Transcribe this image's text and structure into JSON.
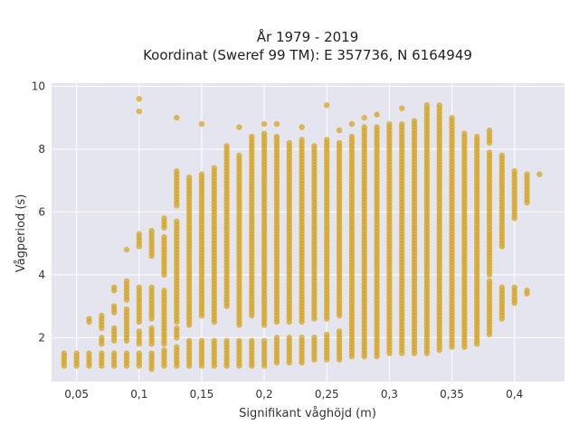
{
  "chart_data": {
    "type": "scatter",
    "title_lines": [
      "År 1979 - 2019",
      "Koordinat (Sweref 99 TM): E 357736, N 6164949"
    ],
    "xlabel": "Signifikant våghöjd (m)",
    "ylabel": "Vågperiod (s)",
    "xlim": [
      0.03,
      0.44
    ],
    "ylim": [
      0.6,
      10.1
    ],
    "x_ticks": [
      0.05,
      0.1,
      0.15,
      0.2,
      0.25,
      0.3,
      0.35,
      0.4
    ],
    "x_tick_labels": [
      "0,05",
      "0,1",
      "0,15",
      "0,2",
      "0,25",
      "0,3",
      "0,35",
      "0,4"
    ],
    "y_ticks": [
      2,
      4,
      6,
      8,
      10
    ],
    "y_tick_labels": [
      "2",
      "4",
      "6",
      "8",
      "10"
    ],
    "grid": true,
    "marker_color": "#d4a421",
    "background_color": "#e5e5ef",
    "columns": [
      {
        "x": 0.04,
        "segments": [
          [
            1.1,
            1.5
          ]
        ]
      },
      {
        "x": 0.05,
        "segments": [
          [
            1.1,
            1.5
          ]
        ]
      },
      {
        "x": 0.06,
        "segments": [
          [
            1.1,
            1.5
          ],
          [
            2.5,
            2.6
          ]
        ]
      },
      {
        "x": 0.07,
        "segments": [
          [
            1.1,
            1.5
          ],
          [
            1.8,
            2.0
          ],
          [
            2.3,
            2.7
          ]
        ]
      },
      {
        "x": 0.08,
        "segments": [
          [
            1.1,
            1.5
          ],
          [
            1.9,
            2.3
          ],
          [
            2.8,
            3.0
          ],
          [
            3.5,
            3.6
          ]
        ]
      },
      {
        "x": 0.09,
        "segments": [
          [
            1.1,
            1.5
          ],
          [
            1.9,
            2.9
          ],
          [
            3.2,
            3.8
          ],
          [
            4.8,
            4.8
          ]
        ]
      },
      {
        "x": 0.1,
        "segments": [
          [
            1.1,
            1.5
          ],
          [
            1.8,
            2.2
          ],
          [
            2.5,
            3.6
          ],
          [
            4.9,
            5.3
          ],
          [
            9.2,
            9.2
          ],
          [
            9.6,
            9.6
          ]
        ]
      },
      {
        "x": 0.11,
        "segments": [
          [
            1.0,
            1.5
          ],
          [
            1.8,
            2.3
          ],
          [
            2.6,
            3.6
          ],
          [
            4.6,
            5.4
          ]
        ]
      },
      {
        "x": 0.12,
        "segments": [
          [
            1.1,
            1.6
          ],
          [
            1.8,
            3.5
          ],
          [
            4.0,
            5.2
          ],
          [
            5.5,
            5.8
          ]
        ]
      },
      {
        "x": 0.13,
        "segments": [
          [
            1.1,
            1.7
          ],
          [
            2.0,
            2.3
          ],
          [
            2.5,
            5.7
          ],
          [
            6.2,
            7.3
          ],
          [
            9.0,
            9.0
          ]
        ]
      },
      {
        "x": 0.14,
        "segments": [
          [
            1.1,
            1.9
          ],
          [
            2.4,
            7.1
          ]
        ]
      },
      {
        "x": 0.15,
        "segments": [
          [
            1.1,
            1.9
          ],
          [
            2.7,
            7.2
          ],
          [
            8.8,
            8.8
          ]
        ]
      },
      {
        "x": 0.16,
        "segments": [
          [
            1.1,
            1.9
          ],
          [
            2.5,
            7.4
          ]
        ]
      },
      {
        "x": 0.17,
        "segments": [
          [
            1.1,
            1.9
          ],
          [
            3.0,
            8.1
          ]
        ]
      },
      {
        "x": 0.18,
        "segments": [
          [
            1.1,
            1.9
          ],
          [
            2.4,
            7.8
          ],
          [
            8.7,
            8.7
          ]
        ]
      },
      {
        "x": 0.19,
        "segments": [
          [
            1.1,
            1.9
          ],
          [
            2.7,
            8.4
          ]
        ]
      },
      {
        "x": 0.2,
        "segments": [
          [
            1.1,
            1.9
          ],
          [
            2.4,
            8.5
          ],
          [
            8.8,
            8.8
          ]
        ]
      },
      {
        "x": 0.21,
        "segments": [
          [
            1.2,
            2.0
          ],
          [
            2.5,
            8.4
          ],
          [
            8.8,
            8.8
          ]
        ]
      },
      {
        "x": 0.22,
        "segments": [
          [
            1.2,
            2.0
          ],
          [
            2.5,
            8.2
          ]
        ]
      },
      {
        "x": 0.23,
        "segments": [
          [
            1.2,
            2.0
          ],
          [
            2.5,
            8.3
          ],
          [
            8.7,
            8.7
          ]
        ]
      },
      {
        "x": 0.24,
        "segments": [
          [
            1.3,
            2.0
          ],
          [
            2.6,
            8.1
          ]
        ]
      },
      {
        "x": 0.25,
        "segments": [
          [
            1.3,
            2.1
          ],
          [
            2.6,
            8.3
          ],
          [
            9.4,
            9.4
          ]
        ]
      },
      {
        "x": 0.26,
        "segments": [
          [
            1.3,
            2.2
          ],
          [
            2.7,
            8.2
          ],
          [
            8.6,
            8.6
          ]
        ]
      },
      {
        "x": 0.27,
        "segments": [
          [
            1.4,
            8.4
          ],
          [
            8.8,
            8.8
          ]
        ]
      },
      {
        "x": 0.28,
        "segments": [
          [
            1.4,
            8.7
          ],
          [
            9.0,
            9.0
          ]
        ]
      },
      {
        "x": 0.29,
        "segments": [
          [
            1.4,
            8.7
          ],
          [
            9.1,
            9.1
          ]
        ]
      },
      {
        "x": 0.3,
        "segments": [
          [
            1.5,
            8.8
          ]
        ]
      },
      {
        "x": 0.31,
        "segments": [
          [
            1.5,
            8.8
          ],
          [
            9.3,
            9.3
          ]
        ]
      },
      {
        "x": 0.32,
        "segments": [
          [
            1.5,
            8.9
          ]
        ]
      },
      {
        "x": 0.33,
        "segments": [
          [
            1.5,
            9.4
          ]
        ]
      },
      {
        "x": 0.34,
        "segments": [
          [
            1.6,
            9.4
          ]
        ]
      },
      {
        "x": 0.35,
        "segments": [
          [
            1.7,
            9.0
          ]
        ]
      },
      {
        "x": 0.36,
        "segments": [
          [
            1.7,
            8.5
          ]
        ]
      },
      {
        "x": 0.37,
        "segments": [
          [
            1.8,
            8.4
          ]
        ]
      },
      {
        "x": 0.38,
        "segments": [
          [
            2.1,
            3.8
          ],
          [
            4.0,
            7.9
          ],
          [
            8.2,
            8.6
          ]
        ]
      },
      {
        "x": 0.39,
        "segments": [
          [
            2.6,
            3.6
          ],
          [
            4.9,
            7.8
          ]
        ]
      },
      {
        "x": 0.4,
        "segments": [
          [
            3.1,
            3.6
          ],
          [
            5.8,
            7.3
          ]
        ]
      },
      {
        "x": 0.41,
        "segments": [
          [
            3.4,
            3.5
          ],
          [
            6.3,
            7.2
          ]
        ]
      },
      {
        "x": 0.42,
        "segments": [
          [
            7.2,
            7.2
          ]
        ]
      }
    ]
  }
}
